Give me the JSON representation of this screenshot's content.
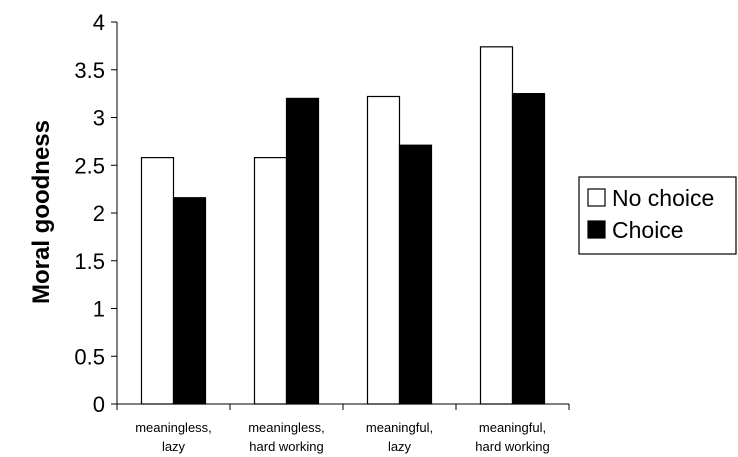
{
  "chart_data": {
    "type": "bar",
    "categories": [
      [
        "meaningless,",
        "lazy"
      ],
      [
        "meaningless,",
        "hard working"
      ],
      [
        "meaningful,",
        "lazy"
      ],
      [
        "meaningful,",
        "hard working"
      ]
    ],
    "series": [
      {
        "name": "No choice",
        "values": [
          2.58,
          2.58,
          3.22,
          3.74
        ],
        "color": "#ffffff"
      },
      {
        "name": "Choice",
        "values": [
          2.16,
          3.2,
          2.71,
          3.25
        ],
        "color": "#000000"
      }
    ],
    "ylabel": "Moral goodness",
    "xlabel": "",
    "ylim": [
      0,
      4
    ],
    "yticks": [
      "0",
      "0.5",
      "1",
      "1.5",
      "2",
      "2.5",
      "3",
      "3.5",
      "4"
    ],
    "grid": false,
    "legend_position": "right"
  }
}
